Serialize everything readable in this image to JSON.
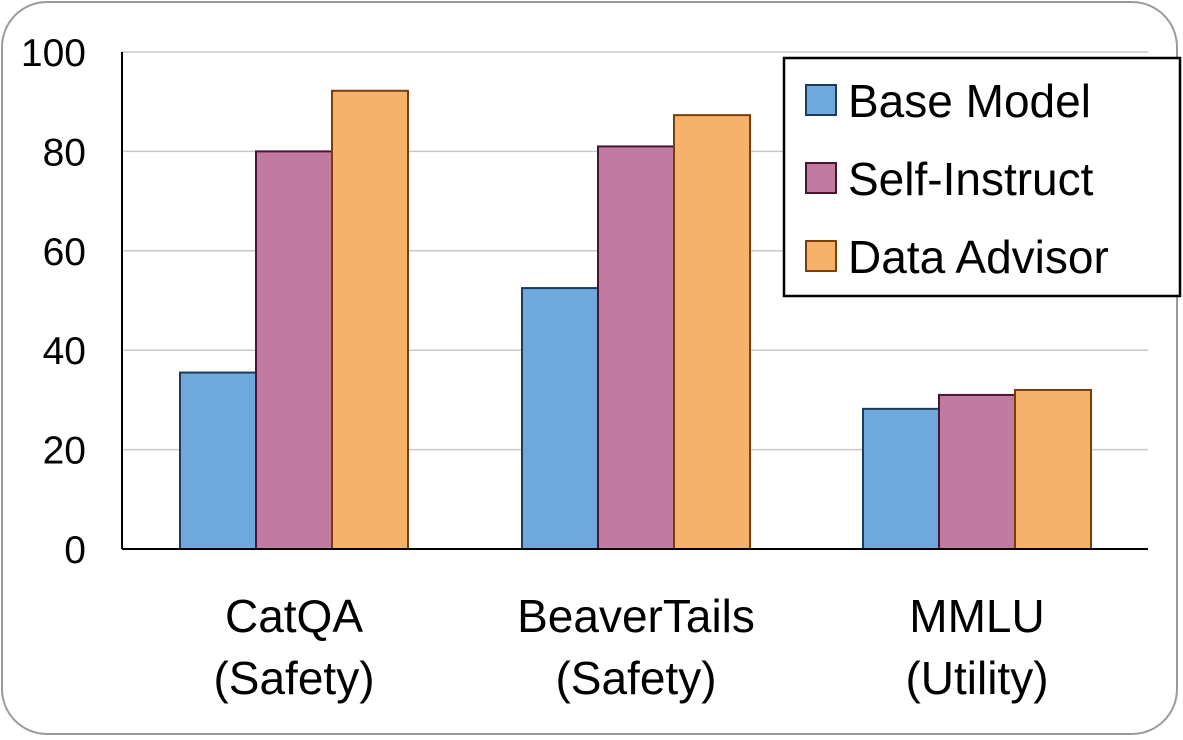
{
  "chart_data": {
    "type": "bar",
    "title": "",
    "xlabel": "",
    "ylabel": "",
    "ylim": [
      0,
      100
    ],
    "yticks": [
      0,
      20,
      40,
      60,
      80,
      100
    ],
    "grid": true,
    "legend_position": "top-right",
    "categories": [
      [
        "CatQA",
        "(Safety)"
      ],
      [
        "BeaverTails",
        "(Safety)"
      ],
      [
        "MMLU",
        "(Utility)"
      ]
    ],
    "series": [
      {
        "name": "Base Model",
        "values": [
          35.5,
          52.5,
          28.2
        ],
        "fill": "#6fa8dc",
        "stroke": "#1b3a5c"
      },
      {
        "name": "Self-Instruct",
        "values": [
          80.0,
          81.0,
          31.0
        ],
        "fill": "#c27ba0",
        "stroke": "#4a1530"
      },
      {
        "name": "Data Advisor",
        "values": [
          92.2,
          87.3,
          32.0
        ],
        "fill": "#f6b26b",
        "stroke": "#7a3f06"
      }
    ]
  }
}
